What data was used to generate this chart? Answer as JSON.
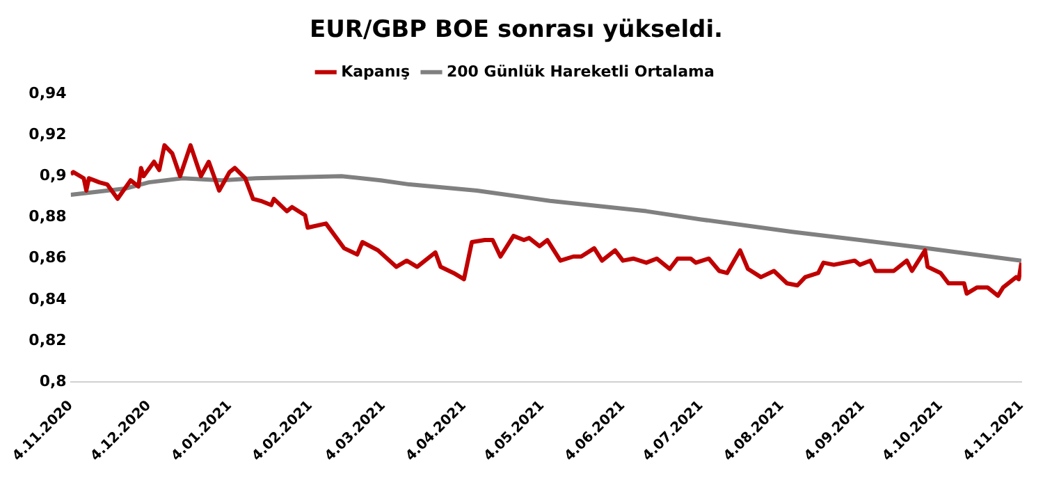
{
  "chart_data": {
    "type": "line",
    "title": "EUR/GBP BOE sonrası yükseldi.",
    "legend": "top",
    "grid": false,
    "marker": "none",
    "line_style": "solid",
    "xlim": [
      "2020-11-04",
      "2021-11-04"
    ],
    "xticks": [
      {
        "value": "2020-11-04",
        "label": "4.11.2020"
      },
      {
        "value": "2020-12-04",
        "label": "4.12.2020"
      },
      {
        "value": "2021-01-04",
        "label": "4.01.2021"
      },
      {
        "value": "2021-02-04",
        "label": "4.02.2021"
      },
      {
        "value": "2021-03-04",
        "label": "4.03.2021"
      },
      {
        "value": "2021-04-04",
        "label": "4.04.2021"
      },
      {
        "value": "2021-05-04",
        "label": "4.05.2021"
      },
      {
        "value": "2021-06-04",
        "label": "4.06.2021"
      },
      {
        "value": "2021-07-04",
        "label": "4.07.2021"
      },
      {
        "value": "2021-08-04",
        "label": "4.08.2021"
      },
      {
        "value": "2021-09-04",
        "label": "4.09.2021"
      },
      {
        "value": "2021-10-04",
        "label": "4.10.2021"
      },
      {
        "value": "2021-11-04",
        "label": "4.11.2021"
      }
    ],
    "ylim": [
      0.8,
      0.94
    ],
    "yticks": [
      {
        "value": 0.8,
        "label": "0,8"
      },
      {
        "value": 0.82,
        "label": "0,82"
      },
      {
        "value": 0.84,
        "label": "0,84"
      },
      {
        "value": 0.86,
        "label": "0,86"
      },
      {
        "value": 0.88,
        "label": "0,88"
      },
      {
        "value": 0.9,
        "label": "0,9"
      },
      {
        "value": 0.92,
        "label": "0,92"
      },
      {
        "value": 0.94,
        "label": "0,94"
      }
    ],
    "series": [
      {
        "name": "Kapanış",
        "color": "#c00000",
        "x": [
          "2020-11-04",
          "2020-11-05",
          "2020-11-09",
          "2020-11-10",
          "2020-11-11",
          "2020-11-15",
          "2020-11-18",
          "2020-11-22",
          "2020-11-27",
          "2020-11-30",
          "2020-12-01",
          "2020-12-02",
          "2020-12-06",
          "2020-12-08",
          "2020-12-10",
          "2020-12-13",
          "2020-12-16",
          "2020-12-20",
          "2020-12-24",
          "2020-12-27",
          "2020-12-31",
          "2021-01-04",
          "2021-01-06",
          "2021-01-10",
          "2021-01-13",
          "2021-01-16",
          "2021-01-20",
          "2021-01-21",
          "2021-01-26",
          "2021-01-28",
          "2021-02-02",
          "2021-02-03",
          "2021-02-10",
          "2021-02-17",
          "2021-02-22",
          "2021-02-24",
          "2021-03-02",
          "2021-03-09",
          "2021-03-13",
          "2021-03-17",
          "2021-03-24",
          "2021-03-26",
          "2021-03-31",
          "2021-04-04",
          "2021-04-07",
          "2021-04-12",
          "2021-04-15",
          "2021-04-18",
          "2021-04-23",
          "2021-04-27",
          "2021-04-29",
          "2021-05-03",
          "2021-05-06",
          "2021-05-11",
          "2021-05-16",
          "2021-05-19",
          "2021-05-24",
          "2021-05-27",
          "2021-06-01",
          "2021-06-04",
          "2021-06-08",
          "2021-06-13",
          "2021-06-17",
          "2021-06-22",
          "2021-06-25",
          "2021-06-30",
          "2021-07-02",
          "2021-07-07",
          "2021-07-11",
          "2021-07-14",
          "2021-07-19",
          "2021-07-22",
          "2021-07-27",
          "2021-08-01",
          "2021-08-06",
          "2021-08-10",
          "2021-08-13",
          "2021-08-18",
          "2021-08-20",
          "2021-08-24",
          "2021-09-01",
          "2021-09-03",
          "2021-09-07",
          "2021-09-09",
          "2021-09-16",
          "2021-09-21",
          "2021-09-23",
          "2021-09-28",
          "2021-09-29",
          "2021-10-04",
          "2021-10-07",
          "2021-10-13",
          "2021-10-14",
          "2021-10-18",
          "2021-10-22",
          "2021-10-26",
          "2021-10-28",
          "2021-11-02",
          "2021-11-03",
          "2021-11-04"
        ],
        "values": [
          0.901,
          0.902,
          0.899,
          0.893,
          0.899,
          0.897,
          0.896,
          0.889,
          0.898,
          0.895,
          0.904,
          0.9,
          0.907,
          0.903,
          0.915,
          0.911,
          0.9,
          0.915,
          0.9,
          0.907,
          0.893,
          0.902,
          0.904,
          0.899,
          0.889,
          0.888,
          0.886,
          0.889,
          0.883,
          0.885,
          0.881,
          0.875,
          0.877,
          0.865,
          0.862,
          0.868,
          0.864,
          0.856,
          0.859,
          0.856,
          0.863,
          0.856,
          0.853,
          0.85,
          0.868,
          0.869,
          0.869,
          0.861,
          0.871,
          0.869,
          0.87,
          0.866,
          0.869,
          0.859,
          0.861,
          0.861,
          0.865,
          0.859,
          0.864,
          0.859,
          0.86,
          0.858,
          0.86,
          0.855,
          0.86,
          0.86,
          0.858,
          0.86,
          0.854,
          0.853,
          0.864,
          0.855,
          0.851,
          0.854,
          0.848,
          0.847,
          0.851,
          0.853,
          0.858,
          0.857,
          0.859,
          0.857,
          0.859,
          0.854,
          0.854,
          0.859,
          0.854,
          0.864,
          0.856,
          0.853,
          0.848,
          0.848,
          0.843,
          0.846,
          0.846,
          0.842,
          0.846,
          0.851,
          0.85,
          0.858
        ]
      },
      {
        "name": "200 Günlük Hareketli Ortalama",
        "color": "#808080",
        "x": [
          "2020-11-04",
          "2020-11-25",
          "2020-12-04",
          "2020-12-17",
          "2021-01-01",
          "2021-01-14",
          "2021-02-16",
          "2021-03-03",
          "2021-03-14",
          "2021-04-09",
          "2021-05-07",
          "2021-06-13",
          "2021-07-04",
          "2021-08-08",
          "2021-09-03",
          "2021-09-29",
          "2021-11-04"
        ],
        "values": [
          0.891,
          0.894,
          0.897,
          0.899,
          0.898,
          0.899,
          0.9,
          0.898,
          0.896,
          0.893,
          0.888,
          0.883,
          0.879,
          0.873,
          0.869,
          0.865,
          0.859
        ]
      }
    ]
  }
}
